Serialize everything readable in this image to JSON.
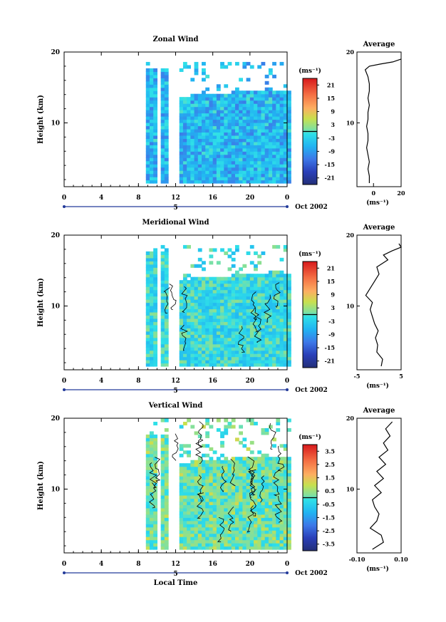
{
  "chart_data": [
    {
      "type": "heatmap",
      "title": "Zonal Wind",
      "ylabel": "Height (km)",
      "xlabel": "",
      "x_ticks": [
        "0",
        "4",
        "8",
        "12",
        "16",
        "20",
        "0"
      ],
      "y_ticks": [
        "20",
        "10"
      ],
      "xlim": [
        0,
        24
      ],
      "ylim": [
        1,
        20
      ],
      "day_label": "5",
      "date_label": "Oct 2002",
      "colorbar": {
        "unit_label": "(ms⁻¹)",
        "ticks": [
          "21",
          "15",
          "9",
          "3",
          "-3",
          "-9",
          "-15",
          "-21"
        ],
        "range": [
          -24,
          24
        ],
        "zero_contour_on_bar": true
      },
      "data_coverage": {
        "x_start": 8.8,
        "x_end": 24,
        "top_km": 18.3
      },
      "dominant_value_range": [
        -12,
        0
      ],
      "average_profile": {
        "title": "Average",
        "x_ticks": [
          "0",
          "20"
        ],
        "xlim": [
          -12,
          20
        ],
        "xlabel": "(ms⁻¹)",
        "y_ticks": [
          "20",
          "10"
        ],
        "points": [
          [
            -3,
            1.5
          ],
          [
            -3,
            2.5
          ],
          [
            -4,
            3.5
          ],
          [
            -3,
            4.5
          ],
          [
            -4,
            5.5
          ],
          [
            -5,
            6.5
          ],
          [
            -4,
            7.5
          ],
          [
            -4,
            8.5
          ],
          [
            -5,
            9.5
          ],
          [
            -4,
            10.5
          ],
          [
            -4,
            11.5
          ],
          [
            -3,
            12.5
          ],
          [
            -4,
            13.5
          ],
          [
            -3,
            14.5
          ],
          [
            -3,
            15.5
          ],
          [
            -4,
            16.5
          ],
          [
            -6,
            17.5
          ],
          [
            -3,
            18.0
          ],
          [
            5,
            18.3
          ],
          [
            14,
            18.6
          ],
          [
            20,
            19.0
          ]
        ]
      }
    },
    {
      "type": "heatmap",
      "title": "Meridional Wind",
      "ylabel": "Height (km)",
      "xlabel": "",
      "x_ticks": [
        "0",
        "4",
        "8",
        "12",
        "16",
        "20",
        "0"
      ],
      "y_ticks": [
        "20",
        "10"
      ],
      "xlim": [
        0,
        24
      ],
      "ylim": [
        1,
        20
      ],
      "day_label": "5",
      "date_label": "Oct 2002",
      "colorbar": {
        "unit_label": "(ms⁻¹)",
        "ticks": [
          "21",
          "15",
          "9",
          "3",
          "-3",
          "-9",
          "-15",
          "-21"
        ],
        "range": [
          -24,
          24
        ],
        "zero_contour_on_bar": true
      },
      "data_coverage": {
        "x_start": 8.8,
        "x_end": 24,
        "top_km": 18.3
      },
      "dominant_value_range": [
        -6,
        2
      ],
      "average_profile": {
        "title": "Average",
        "x_ticks": [
          "-5",
          "5"
        ],
        "xlim": [
          -5,
          5
        ],
        "xlabel": "(ms⁻¹)",
        "y_ticks": [
          "20",
          "10"
        ],
        "points": [
          [
            0.5,
            1.5
          ],
          [
            0.8,
            2.5
          ],
          [
            -0.5,
            3.5
          ],
          [
            -0.3,
            4.5
          ],
          [
            -0.8,
            5.5
          ],
          [
            -0.2,
            6.5
          ],
          [
            -1,
            7.5
          ],
          [
            -1.5,
            8.5
          ],
          [
            -2,
            9.5
          ],
          [
            -1.5,
            10.5
          ],
          [
            -3,
            11.5
          ],
          [
            -2,
            12.5
          ],
          [
            -1,
            13.5
          ],
          [
            0,
            14.5
          ],
          [
            -0.5,
            15.5
          ],
          [
            2,
            16.5
          ],
          [
            1,
            17.2
          ],
          [
            3,
            17.8
          ],
          [
            5,
            18.3
          ],
          [
            4.5,
            18.8
          ]
        ]
      }
    },
    {
      "type": "heatmap",
      "title": "Vertical Wind",
      "ylabel": "Height (km)",
      "xlabel": "Local Time",
      "x_ticks": [
        "0",
        "4",
        "8",
        "12",
        "16",
        "20",
        "0"
      ],
      "y_ticks": [
        "20",
        "10"
      ],
      "xlim": [
        0,
        24
      ],
      "ylim": [
        1,
        20
      ],
      "day_label": "5",
      "date_label": "Oct 2002",
      "colorbar": {
        "unit_label": "(ms⁻¹)",
        "ticks": [
          "3.5",
          "2.5",
          "1.5",
          "0.5",
          "-0.5",
          "-1.5",
          "-2.5",
          "-3.5"
        ],
        "range": [
          -4,
          4
        ],
        "zero_contour_on_bar": true
      },
      "data_coverage": {
        "x_start": 8.8,
        "x_end": 24,
        "top_km": 19.5
      },
      "dominant_value_range": [
        -0.5,
        0.5
      ],
      "average_profile": {
        "title": "Average",
        "x_ticks": [
          "-0.10",
          "0.10"
        ],
        "xlim": [
          -0.1,
          0.1
        ],
        "xlabel": "(ms⁻¹)",
        "y_ticks": [
          "20",
          "10"
        ],
        "points": [
          [
            -0.03,
            1.5
          ],
          [
            0.02,
            2.5
          ],
          [
            0.01,
            3.5
          ],
          [
            -0.04,
            4.5
          ],
          [
            -0.01,
            5.5
          ],
          [
            0.0,
            6.5
          ],
          [
            -0.02,
            7.5
          ],
          [
            -0.03,
            8.5
          ],
          [
            0.01,
            9.5
          ],
          [
            -0.02,
            10.5
          ],
          [
            0.02,
            11.5
          ],
          [
            -0.01,
            12.5
          ],
          [
            0.03,
            13.5
          ],
          [
            0.0,
            14.5
          ],
          [
            0.04,
            15.5
          ],
          [
            0.02,
            16.5
          ],
          [
            0.05,
            17.5
          ],
          [
            0.03,
            18.5
          ],
          [
            0.06,
            19.5
          ]
        ]
      }
    }
  ]
}
